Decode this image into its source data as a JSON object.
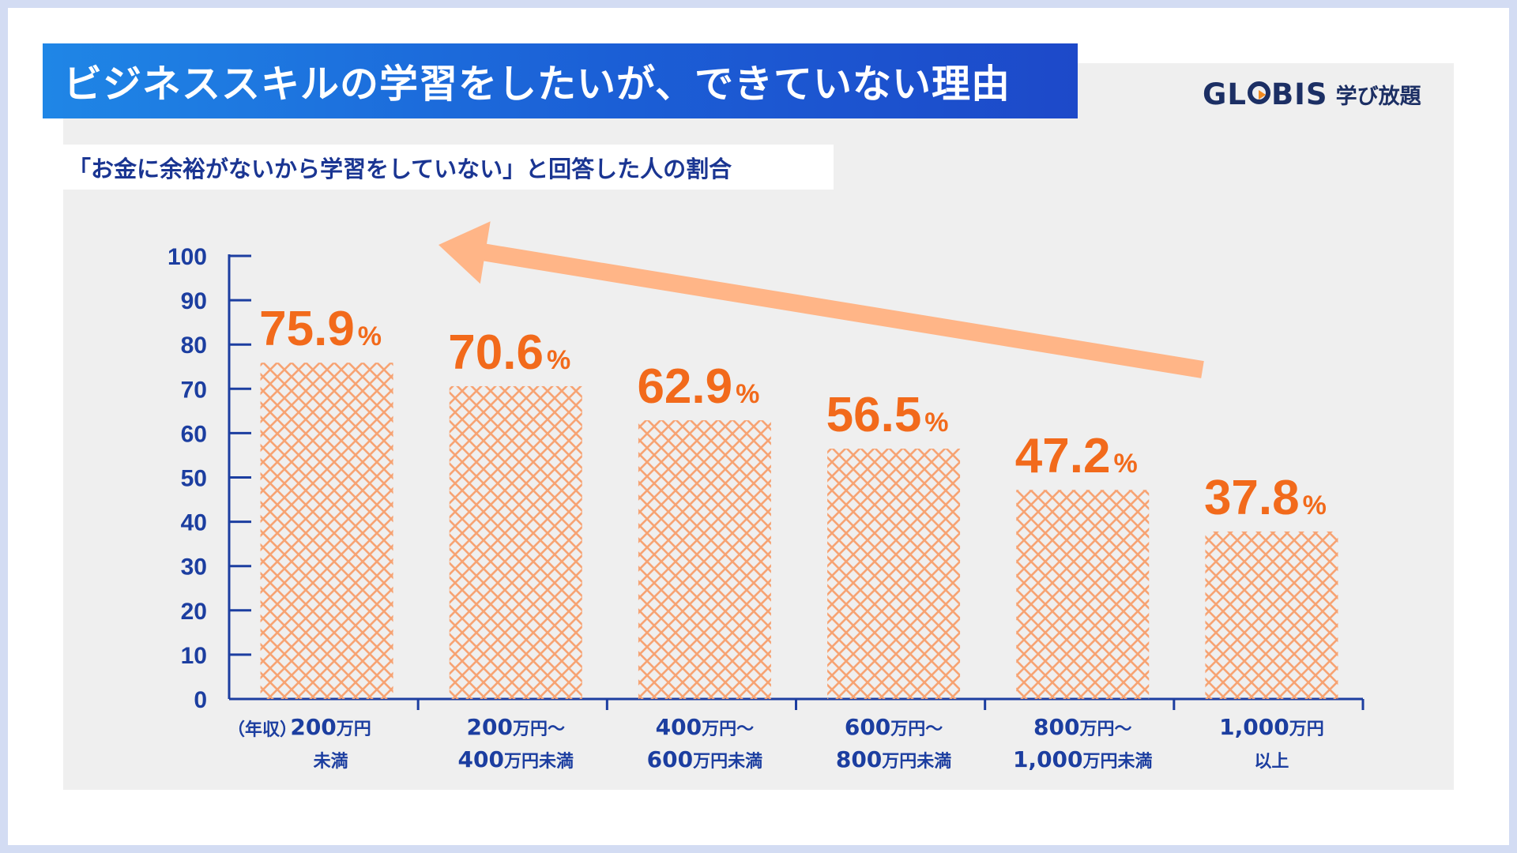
{
  "title": "ビジネススキルの学習をしたいが、できていない理由",
  "logo": {
    "brand": "GLOBIS",
    "sub": "学び放題"
  },
  "colors": {
    "accent": "#1b5fd6",
    "bar": "#f7a373",
    "value": "#f26a1b",
    "axis": "#1c3ea0",
    "arrow": "#ffb587"
  },
  "chart_data": {
    "type": "bar",
    "title": "「お金に余裕がないから学習をしていない」と回答した人の割合",
    "xlabel_prefix": "（年収）",
    "xlabel": "",
    "ylabel": "",
    "ylim": [
      0,
      100
    ],
    "yticks": [
      0,
      10,
      20,
      30,
      40,
      50,
      60,
      70,
      80,
      90,
      100
    ],
    "categories": [
      {
        "line1": "200",
        "unit1": "万円",
        "line2": "",
        "unit2": "未満"
      },
      {
        "line1": "200",
        "unit1": "万円～",
        "line2": "400",
        "unit2": "万円未満"
      },
      {
        "line1": "400",
        "unit1": "万円～",
        "line2": "600",
        "unit2": "万円未満"
      },
      {
        "line1": "600",
        "unit1": "万円～",
        "line2": "800",
        "unit2": "万円未満"
      },
      {
        "line1": "800",
        "unit1": "万円～",
        "line2": "1,000",
        "unit2": "万円未満"
      },
      {
        "line1": "1,000",
        "unit1": "万円",
        "line2": "",
        "unit2": "以上"
      }
    ],
    "values": [
      75.9,
      70.6,
      62.9,
      56.5,
      47.2,
      37.8
    ],
    "value_labels": [
      "75.9",
      "70.6",
      "62.9",
      "56.5",
      "47.2",
      "37.8"
    ],
    "value_suffix": "%",
    "annotation": "decreasing-trend-arrow"
  }
}
